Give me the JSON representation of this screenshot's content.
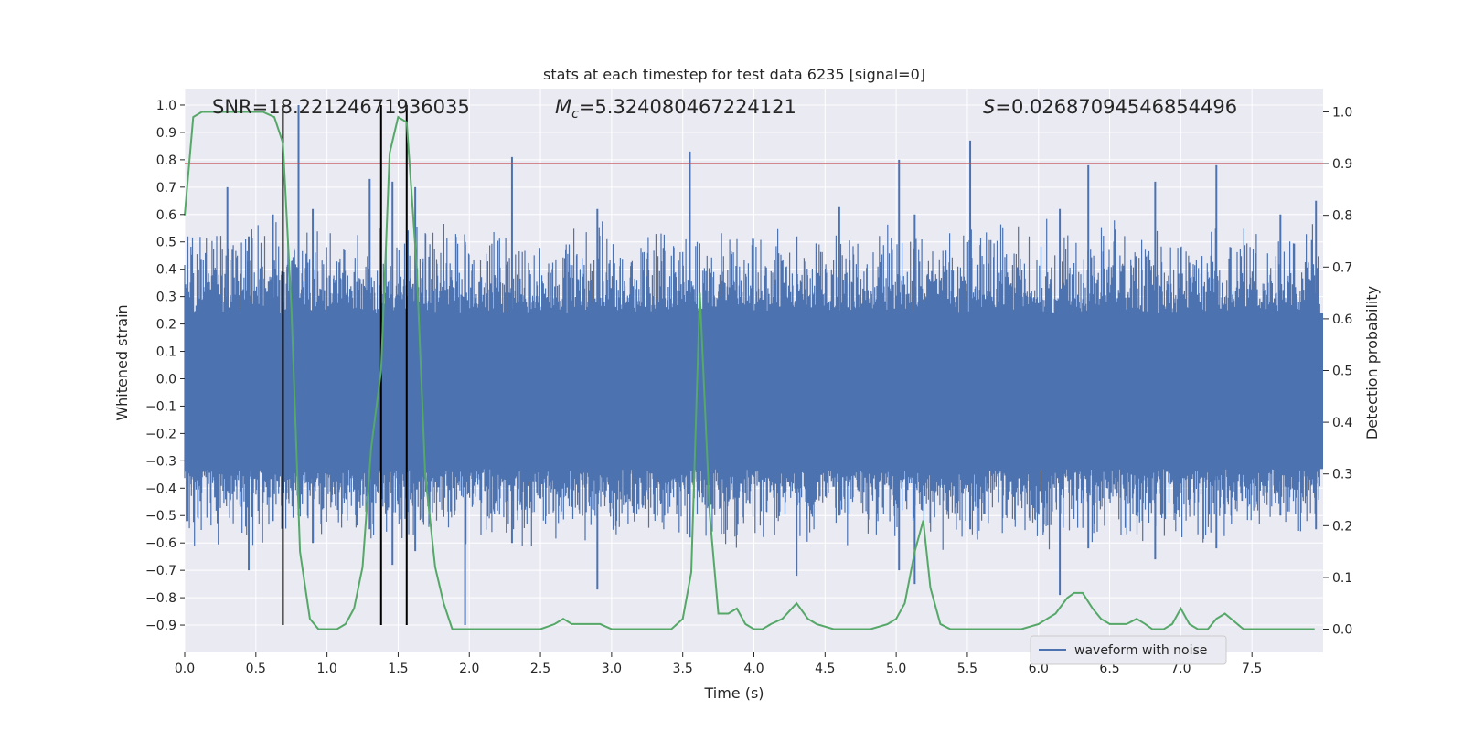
{
  "chart_data": {
    "type": "line",
    "title": "stats at each timestep for test data 6235 [signal=0]",
    "xlabel": "Time (s)",
    "ylabel": "Whitened strain",
    "y2label": "Detection probability",
    "xlim": [
      0.0,
      8.0
    ],
    "ylim": [
      -1.0,
      1.06
    ],
    "y2lim": [
      -0.045,
      1.045
    ],
    "xticks": [
      "0.0",
      "0.5",
      "1.0",
      "1.5",
      "2.0",
      "2.5",
      "3.0",
      "3.5",
      "4.0",
      "4.5",
      "5.0",
      "5.5",
      "6.0",
      "6.5",
      "7.0",
      "7.5"
    ],
    "yticks": [
      "−0.9",
      "−0.8",
      "−0.7",
      "−0.6",
      "−0.5",
      "−0.4",
      "−0.3",
      "−0.2",
      "−0.1",
      "0.0",
      "0.1",
      "0.2",
      "0.3",
      "0.4",
      "0.5",
      "0.6",
      "0.7",
      "0.8",
      "0.9",
      "1.0"
    ],
    "y2ticks": [
      "0.0",
      "0.1",
      "0.2",
      "0.3",
      "0.4",
      "0.5",
      "0.6",
      "0.7",
      "0.8",
      "0.9",
      "1.0"
    ],
    "grid": true,
    "legend": {
      "position": "lower-right",
      "entries": [
        {
          "label": "waveform with noise",
          "color": "#4c72b0"
        }
      ]
    },
    "annotations": {
      "snr": {
        "prefix": "SNR=",
        "value": "18.22124671936035"
      },
      "mc": {
        "symbol": "M",
        "subscript": "c",
        "value": "=5.324080467224121"
      },
      "s": {
        "symbol": "S",
        "value": "=0.02687094546854496"
      }
    },
    "threshold": {
      "y2": 0.9,
      "color": "#c44e52"
    },
    "vlines": {
      "x": [
        0.69,
        1.38,
        1.56
      ],
      "color": "#000000"
    },
    "waveform": {
      "name": "waveform with noise",
      "color": "#4c72b0",
      "noise_band": [
        -0.33,
        0.24
      ],
      "spikes": [
        [
          0.02,
          0.52,
          -0.52
        ],
        [
          0.3,
          0.7,
          -0.3
        ],
        [
          0.45,
          0.52,
          -0.7
        ],
        [
          0.62,
          0.6,
          -0.52
        ],
        [
          0.8,
          1.0,
          -0.5
        ],
        [
          0.9,
          0.62,
          -0.6
        ],
        [
          1.3,
          0.73,
          -0.55
        ],
        [
          1.46,
          0.72,
          -0.68
        ],
        [
          1.62,
          0.7,
          -0.63
        ],
        [
          1.97,
          0.5,
          -0.9
        ],
        [
          2.3,
          0.81,
          -0.6
        ],
        [
          2.9,
          0.62,
          -0.77
        ],
        [
          3.55,
          0.83,
          -0.58
        ],
        [
          4.3,
          0.52,
          -0.72
        ],
        [
          4.6,
          0.63,
          -0.5
        ],
        [
          5.02,
          0.8,
          -0.7
        ],
        [
          5.13,
          0.6,
          -0.75
        ],
        [
          5.52,
          0.87,
          -0.55
        ],
        [
          6.15,
          0.62,
          -0.79
        ],
        [
          6.35,
          0.78,
          -0.62
        ],
        [
          6.82,
          0.72,
          -0.66
        ],
        [
          7.25,
          0.78,
          -0.62
        ],
        [
          7.7,
          0.6,
          -0.5
        ],
        [
          7.95,
          0.65,
          -0.55
        ]
      ]
    },
    "probability": {
      "color": "#55a868",
      "x": [
        0.0,
        0.06,
        0.12,
        0.25,
        0.4,
        0.55,
        0.63,
        0.69,
        0.75,
        0.81,
        0.88,
        0.94,
        1.0,
        1.07,
        1.13,
        1.19,
        1.25,
        1.31,
        1.38,
        1.44,
        1.5,
        1.56,
        1.63,
        1.69,
        1.76,
        1.82,
        1.88,
        2.0,
        2.12,
        2.25,
        2.38,
        2.5,
        2.6,
        2.66,
        2.72,
        2.82,
        2.92,
        3.0,
        3.12,
        3.3,
        3.42,
        3.5,
        3.56,
        3.62,
        3.69,
        3.75,
        3.82,
        3.88,
        3.94,
        4.0,
        4.06,
        4.12,
        4.2,
        4.3,
        4.38,
        4.44,
        4.56,
        4.7,
        4.82,
        4.94,
        5.0,
        5.06,
        5.13,
        5.19,
        5.24,
        5.31,
        5.38,
        5.44,
        5.56,
        5.7,
        5.88,
        6.0,
        6.06,
        6.12,
        6.2,
        6.25,
        6.31,
        6.38,
        6.44,
        6.5,
        6.62,
        6.69,
        6.75,
        6.8,
        6.88,
        6.94,
        7.0,
        7.06,
        7.12,
        7.19,
        7.25,
        7.31,
        7.44,
        7.6,
        7.94
      ],
      "y": [
        0.8,
        0.99,
        1.0,
        1.0,
        1.0,
        1.0,
        0.99,
        0.94,
        0.62,
        0.15,
        0.02,
        0.0,
        0.0,
        0.0,
        0.01,
        0.04,
        0.12,
        0.35,
        0.5,
        0.92,
        0.99,
        0.98,
        0.7,
        0.3,
        0.12,
        0.05,
        0.0,
        0.0,
        0.0,
        0.0,
        0.0,
        0.0,
        0.01,
        0.02,
        0.01,
        0.01,
        0.01,
        0.0,
        0.0,
        0.0,
        0.0,
        0.02,
        0.11,
        0.65,
        0.22,
        0.03,
        0.03,
        0.04,
        0.01,
        0.0,
        0.0,
        0.01,
        0.02,
        0.05,
        0.02,
        0.01,
        0.0,
        0.0,
        0.0,
        0.01,
        0.02,
        0.05,
        0.15,
        0.21,
        0.08,
        0.01,
        0.0,
        0.0,
        0.0,
        0.0,
        0.0,
        0.01,
        0.02,
        0.03,
        0.06,
        0.07,
        0.07,
        0.04,
        0.02,
        0.01,
        0.01,
        0.02,
        0.01,
        0.0,
        0.0,
        0.01,
        0.04,
        0.01,
        0.0,
        0.0,
        0.02,
        0.03,
        0.0,
        0.0,
        0.0
      ]
    }
  }
}
